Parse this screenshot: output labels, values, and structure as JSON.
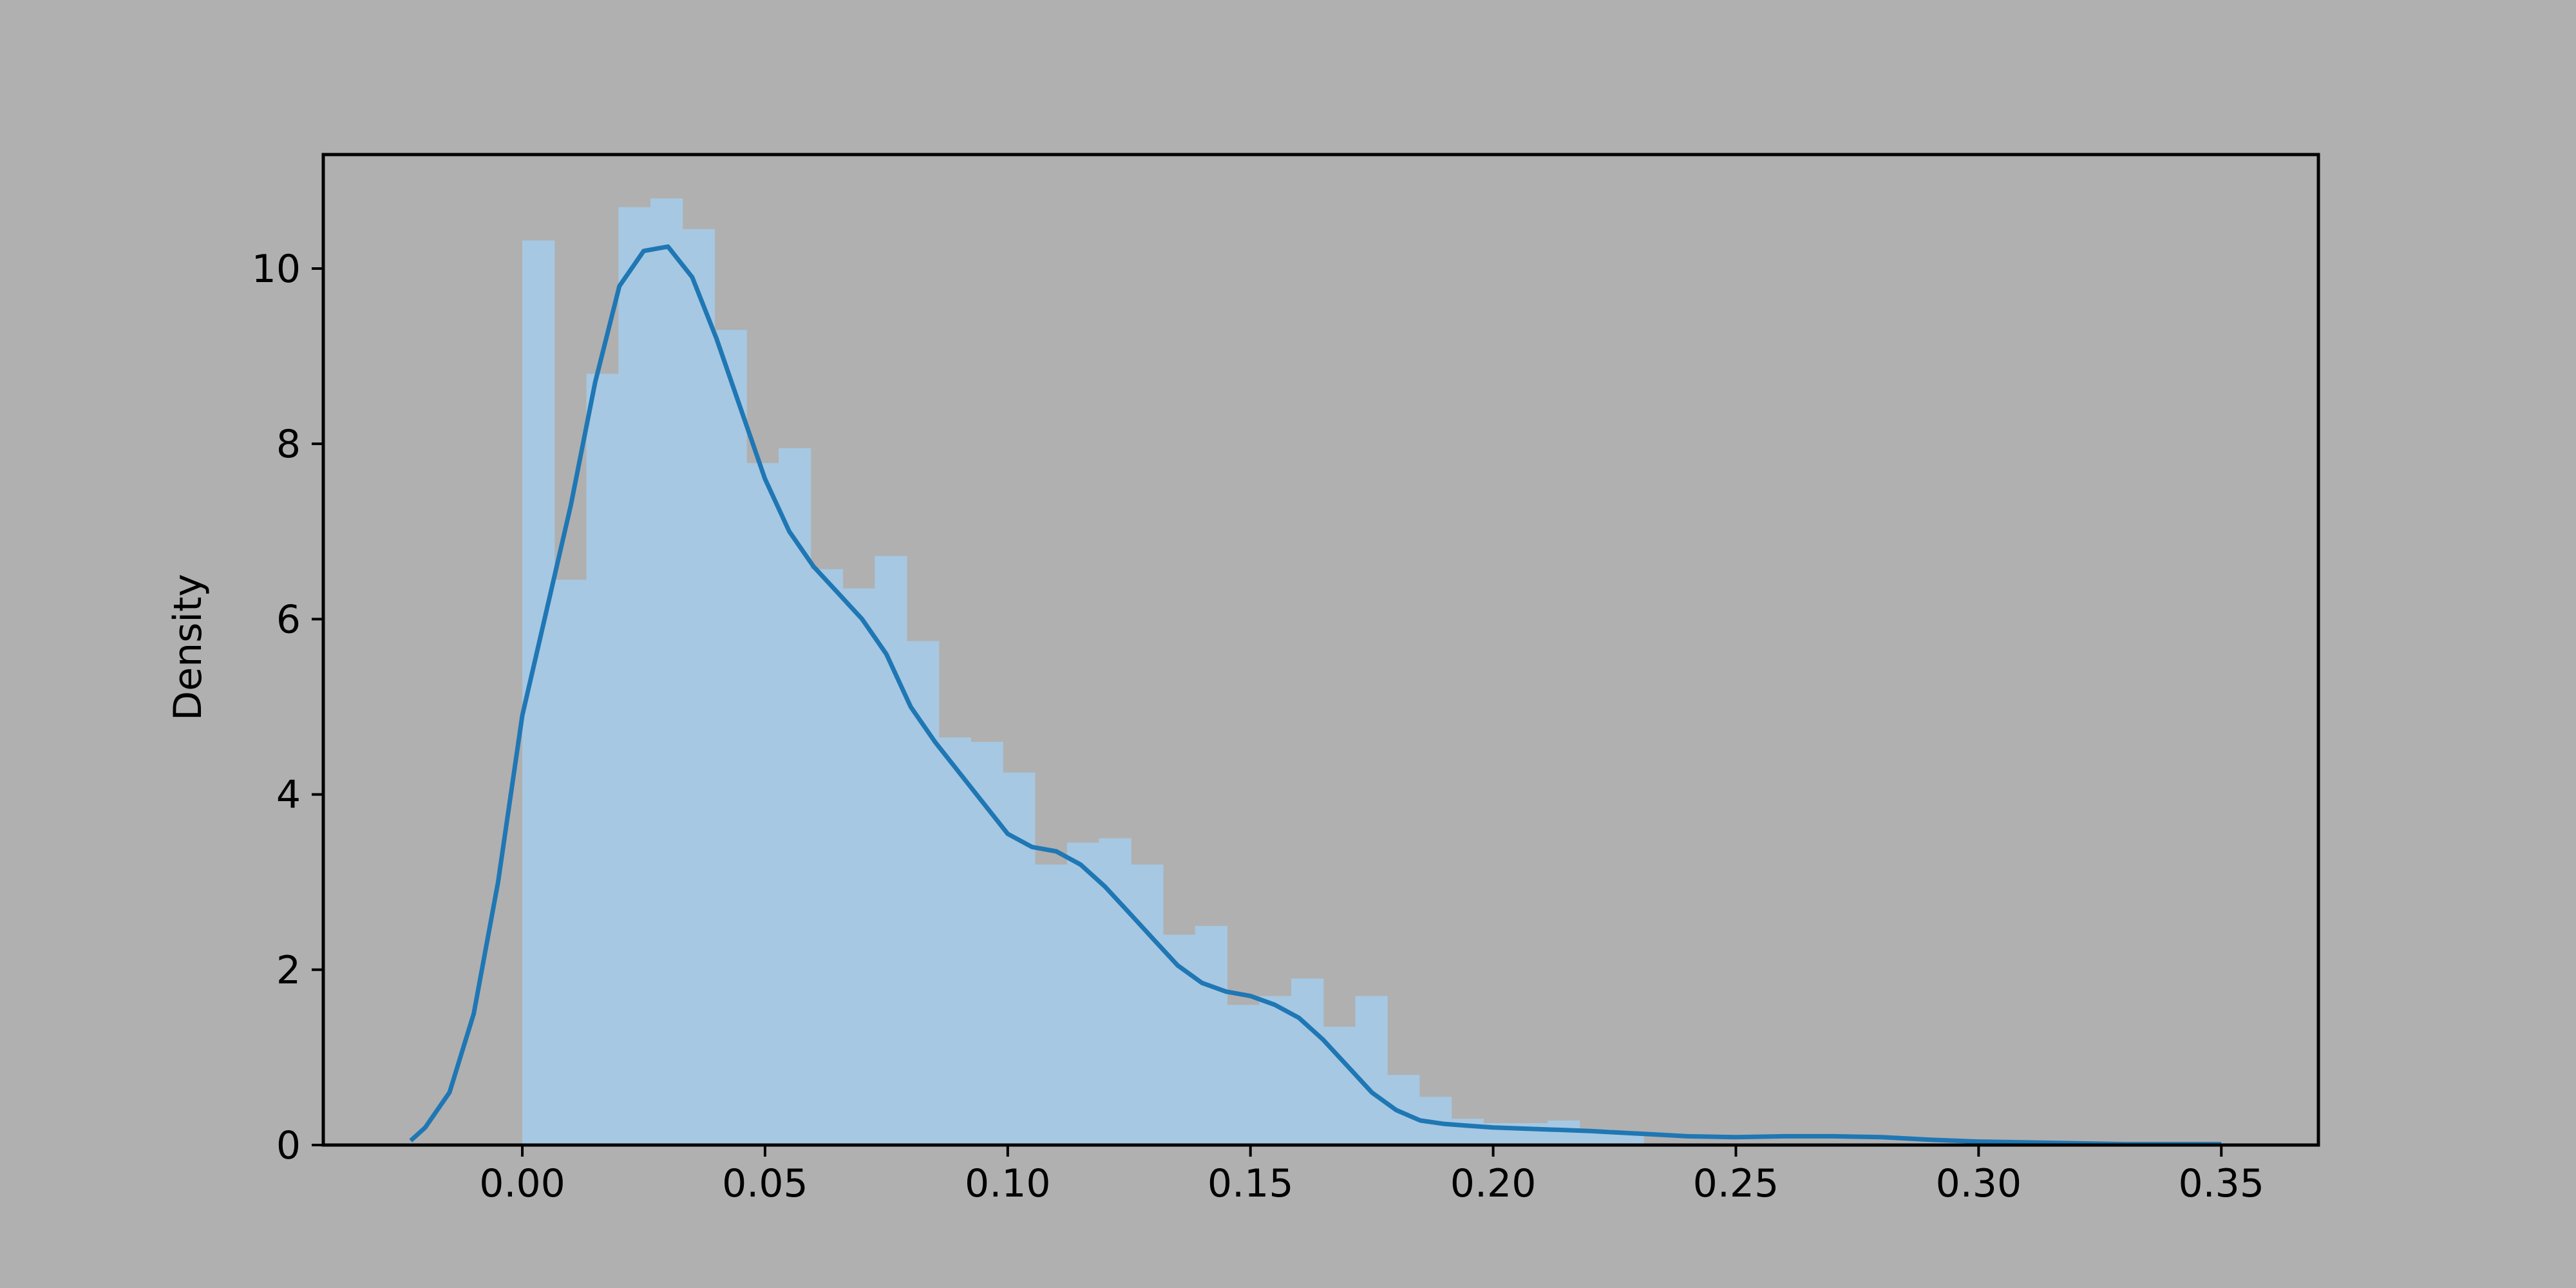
{
  "chart_data": {
    "type": "bar",
    "xlabel": "",
    "ylabel": "Density",
    "xlim": [
      -0.041,
      0.37
    ],
    "ylim": [
      0,
      11.3
    ],
    "x_ticks": [
      0.0,
      0.05,
      0.1,
      0.15,
      0.2,
      0.25,
      0.3,
      0.35
    ],
    "x_tick_labels": [
      "0.00",
      "0.05",
      "0.10",
      "0.15",
      "0.20",
      "0.25",
      "0.30",
      "0.35"
    ],
    "y_ticks": [
      0,
      2,
      4,
      6,
      8,
      10
    ],
    "y_tick_labels": [
      "0",
      "2",
      "4",
      "6",
      "8",
      "10"
    ],
    "grid": false,
    "histogram": {
      "bin_width": 0.0066,
      "bin_starts": [
        0.0,
        0.0066,
        0.0132,
        0.0198,
        0.0264,
        0.033,
        0.0396,
        0.0462,
        0.0528,
        0.0594,
        0.066,
        0.0726,
        0.0792,
        0.0858,
        0.0924,
        0.099,
        0.1056,
        0.1122,
        0.1188,
        0.1254,
        0.132,
        0.1386,
        0.1452,
        0.1518,
        0.1584,
        0.165,
        0.1716,
        0.1782,
        0.1848,
        0.1914,
        0.198,
        0.2046,
        0.2112,
        0.2178,
        0.2244
      ],
      "values": [
        10.32,
        6.45,
        8.8,
        10.7,
        10.8,
        10.45,
        9.3,
        7.78,
        7.95,
        6.57,
        6.35,
        6.72,
        5.75,
        4.65,
        4.6,
        4.25,
        3.2,
        3.45,
        3.5,
        3.2,
        2.4,
        2.5,
        1.6,
        1.7,
        1.9,
        1.35,
        1.7,
        0.8,
        0.55,
        0.3,
        0.25,
        0.25,
        0.28,
        0.18,
        0.12
      ],
      "color": "#a6c8e2"
    },
    "kde": {
      "color": "#1f77b4",
      "x": [
        -0.023,
        -0.02,
        -0.015,
        -0.01,
        -0.005,
        0.0,
        0.005,
        0.01,
        0.015,
        0.02,
        0.025,
        0.03,
        0.035,
        0.04,
        0.045,
        0.05,
        0.055,
        0.06,
        0.065,
        0.07,
        0.075,
        0.08,
        0.085,
        0.09,
        0.095,
        0.1,
        0.105,
        0.11,
        0.115,
        0.12,
        0.125,
        0.13,
        0.135,
        0.14,
        0.145,
        0.15,
        0.155,
        0.16,
        0.165,
        0.17,
        0.175,
        0.18,
        0.185,
        0.19,
        0.195,
        0.2,
        0.21,
        0.22,
        0.23,
        0.24,
        0.25,
        0.26,
        0.27,
        0.28,
        0.29,
        0.3,
        0.31,
        0.32,
        0.33,
        0.34,
        0.35
      ],
      "y": [
        0.05,
        0.2,
        0.6,
        1.5,
        3.0,
        4.9,
        6.1,
        7.3,
        8.7,
        9.8,
        10.2,
        10.25,
        9.9,
        9.2,
        8.4,
        7.6,
        7.0,
        6.6,
        6.3,
        6.0,
        5.6,
        5.0,
        4.6,
        4.25,
        3.9,
        3.55,
        3.4,
        3.35,
        3.2,
        2.95,
        2.65,
        2.35,
        2.05,
        1.85,
        1.75,
        1.7,
        1.6,
        1.45,
        1.2,
        0.9,
        0.6,
        0.4,
        0.28,
        0.24,
        0.22,
        0.2,
        0.18,
        0.16,
        0.13,
        0.1,
        0.09,
        0.1,
        0.1,
        0.09,
        0.06,
        0.04,
        0.03,
        0.02,
        0.01,
        0.01,
        0.01
      ]
    }
  }
}
